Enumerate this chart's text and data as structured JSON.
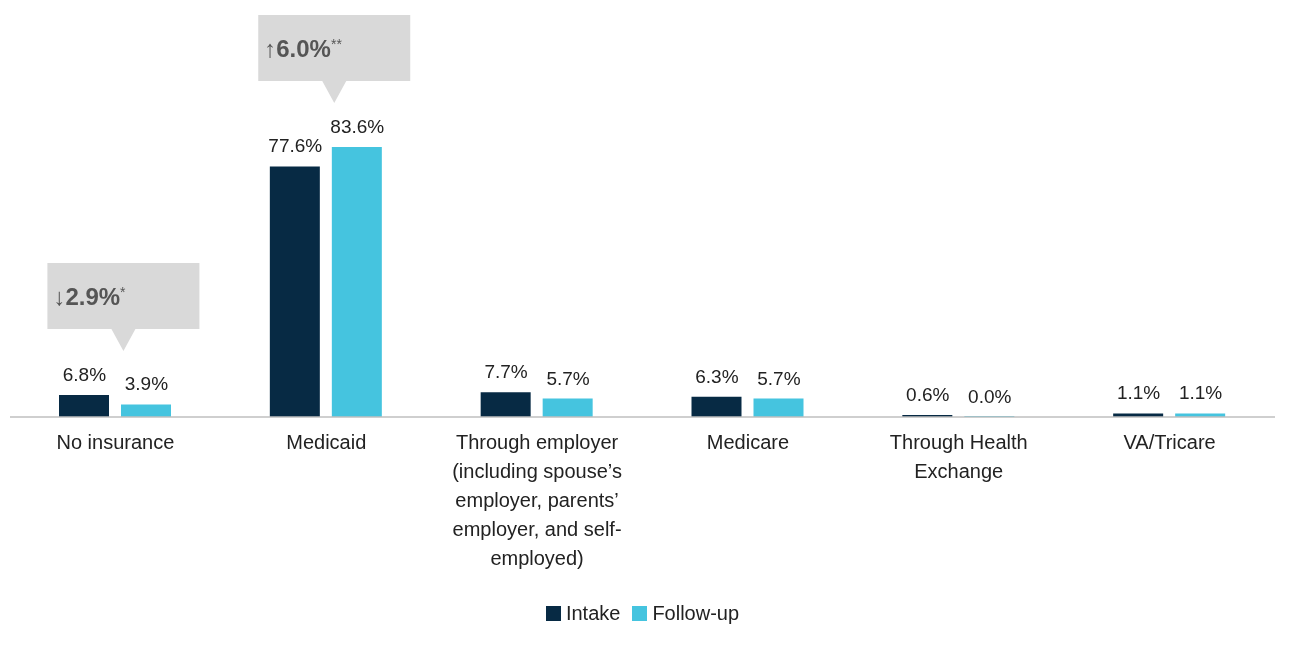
{
  "chart_data": {
    "type": "bar",
    "categories": [
      "No insurance",
      "Medicaid",
      "Through employer (including spouse’s employer, parents’ employer, and self-employed)",
      "Medicare",
      "Through Health Exchange",
      "VA/Tricare"
    ],
    "series": [
      {
        "name": "Intake",
        "color": "#072a44",
        "values": [
          6.8,
          77.6,
          7.7,
          6.3,
          0.6,
          1.1
        ],
        "value_labels": [
          "6.8%",
          "77.6%",
          "7.7%",
          "6.3%",
          "0.6%",
          "1.1%"
        ]
      },
      {
        "name": "Follow-up",
        "color": "#45c4df",
        "values": [
          3.9,
          83.6,
          5.7,
          5.7,
          0.0,
          1.1
        ],
        "value_labels": [
          "3.9%",
          "83.6%",
          "5.7%",
          "5.7%",
          "0.0%",
          "1.1%"
        ]
      }
    ],
    "legend": "bottom",
    "annotations": [
      "↓2.9%$^{*}$",
      "↑6.0%$^{**}$"
    ]
  }
}
